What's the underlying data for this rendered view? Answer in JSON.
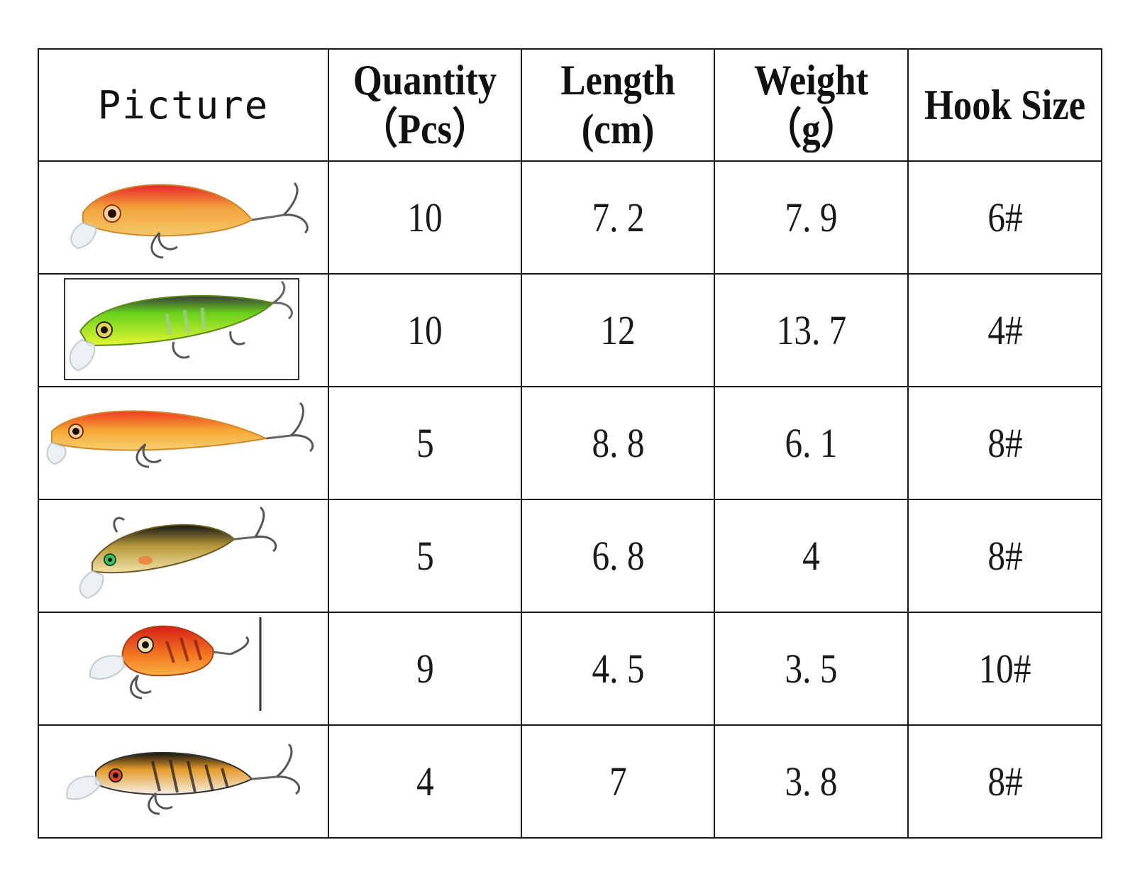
{
  "table": {
    "headers": {
      "picture": "Picture",
      "quantity_line1": "Quantity",
      "quantity_line2": "（Pcs）",
      "length_line1": "Length",
      "length_line2": "(cm)",
      "weight_line1": "Weight",
      "weight_line2": "（g）",
      "hook": "Hook Size"
    },
    "rows": [
      {
        "picture": "red-head-gold-minnow-lure-icon",
        "quantity": "10",
        "length": "7. 2",
        "weight": "7. 9",
        "hook": "6#"
      },
      {
        "picture": "green-firetiger-minnow-lure-icon",
        "quantity": "10",
        "length": "12",
        "weight": "13. 7",
        "hook": "4#"
      },
      {
        "picture": "orange-slim-minnow-lure-icon",
        "quantity": "5",
        "length": "8. 8",
        "weight": "6. 1",
        "hook": "8#"
      },
      {
        "picture": "black-back-gold-minnow-lure-icon",
        "quantity": "5",
        "length": "6. 8",
        "weight": "4",
        "hook": "8#"
      },
      {
        "picture": "red-crankbait-lure-icon",
        "quantity": "9",
        "length": "4. 5",
        "weight": "3. 5",
        "hook": "10#"
      },
      {
        "picture": "black-back-tiger-minnow-lure-icon",
        "quantity": "4",
        "length": "7",
        "weight": "3. 8",
        "hook": "8#"
      }
    ]
  },
  "colors": {
    "border": "#1a1a1a",
    "text": "#111111",
    "background": "#ffffff"
  }
}
